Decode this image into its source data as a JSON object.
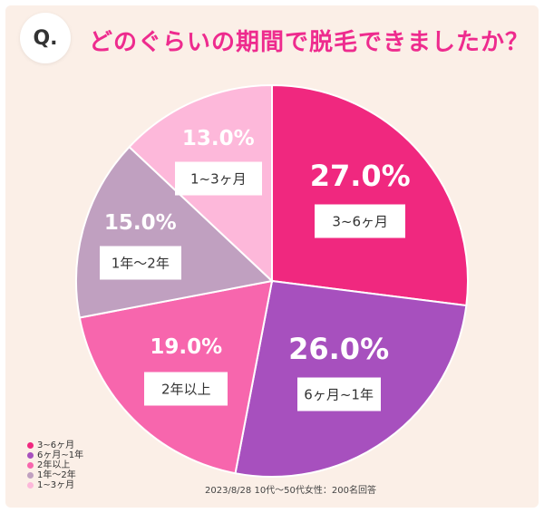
{
  "header": {
    "q_label": "Q.",
    "title": "どのぐらいの期間で脱毛できましたか？"
  },
  "chart_data": {
    "type": "pie",
    "categories": [
      "3~6ヶ月",
      "6ヶ月~1年",
      "2年以上",
      "1年〜2年",
      "1~3ヶ月"
    ],
    "values": [
      27.0,
      26.0,
      19.0,
      15.0,
      13.0
    ],
    "value_labels": [
      "27.0%",
      "26.0%",
      "19.0%",
      "15.0%",
      "13.0%"
    ],
    "colors": [
      "#f0287f",
      "#a750be",
      "#f766ad",
      "#c0a0c0",
      "#fdb8da"
    ],
    "start": "12 o'clock, clockwise",
    "legend": "bottom-left"
  },
  "legend": {
    "items": [
      "3~6ヶ月",
      "6ヶ月~1年",
      "2年以上",
      "1年〜2年",
      "1~3ヶ月"
    ]
  },
  "footnote": "2023/8/28 10代〜50代女性：200名回答"
}
